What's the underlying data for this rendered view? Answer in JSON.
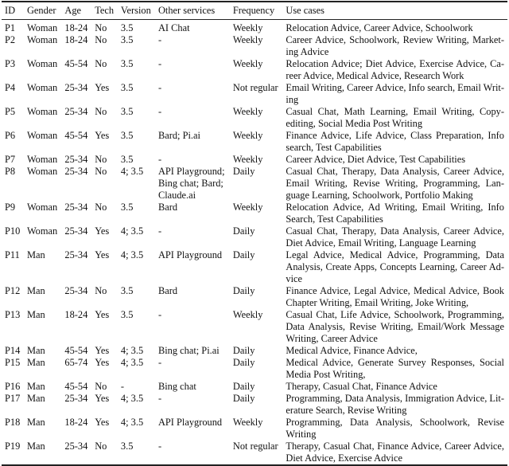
{
  "headers": [
    "ID",
    "Gender",
    "Age",
    "Tech",
    "Version",
    "Other services",
    "Frequency",
    "Use cases"
  ],
  "rows": [
    {
      "id": "P1",
      "gender": "Woman",
      "age": "18-24",
      "tech": "No",
      "version": "3.5",
      "other": [
        "AI Chat"
      ],
      "frequency": "Weekly",
      "use_cases": [
        "Relocation Advice, Career Advice, Schoolwork"
      ]
    },
    {
      "id": "P2",
      "gender": "Woman",
      "age": "18-24",
      "tech": "No",
      "version": "3.5",
      "other": [
        "-"
      ],
      "frequency": "Weekly",
      "use_cases": [
        "Career Advice, Schoolwork, Review Writing, Market-",
        "ing Advice"
      ]
    },
    {
      "id": "P3",
      "gender": "Woman",
      "age": "45-54",
      "tech": "No",
      "version": "3.5",
      "other": [
        "-"
      ],
      "frequency": "Weekly",
      "use_cases": [
        "Relocation Advice; Diet Advice, Exercise Advice, Ca-",
        "reer Advice, Medical Advice, Research Work"
      ]
    },
    {
      "id": "P4",
      "gender": "Woman",
      "age": "25-34",
      "tech": "Yes",
      "version": "3.5",
      "other": [
        "-"
      ],
      "frequency": "Not regular",
      "use_cases": [
        "Email Writing, Career Advice, Info search, Email Writ-",
        "ing"
      ]
    },
    {
      "id": "P5",
      "gender": "Woman",
      "age": "25-34",
      "tech": "No",
      "version": "3.5",
      "other": [
        "-"
      ],
      "frequency": "Weekly",
      "use_cases": [
        "Casual Chat, Math Learning, Email Writing, Copy-",
        "editing, Social Media Post Writing"
      ]
    },
    {
      "id": "P6",
      "gender": "Woman",
      "age": "45-54",
      "tech": "Yes",
      "version": "3.5",
      "other": [
        "Bard; Pi.ai"
      ],
      "frequency": "Weekly",
      "use_cases": [
        "Finance Advice, Life Advice, Class Preparation, Info",
        "search, Test Capabilities"
      ]
    },
    {
      "id": "P7",
      "gender": "Woman",
      "age": "25-34",
      "tech": "No",
      "version": "3.5",
      "other": [
        "-"
      ],
      "frequency": "Weekly",
      "use_cases": [
        "Career Advice, Diet Advice, Test Capabilities"
      ]
    },
    {
      "id": "P8",
      "gender": "Woman",
      "age": "25-34",
      "tech": "No",
      "version": "4; 3.5",
      "other": [
        "API Playground;",
        "Bing chat; Bard;",
        "Claude.ai"
      ],
      "frequency": "Daily",
      "use_cases": [
        "Casual Chat, Therapy, Data Analysis, Career Advice,",
        "Email Writing, Revise Writing, Programming, Lan-",
        "guage Learning, Schoolwork, Portfolio Making"
      ]
    },
    {
      "id": "P9",
      "gender": "Woman",
      "age": "25-34",
      "tech": "No",
      "version": "3.5",
      "other": [
        "Bard"
      ],
      "frequency": "Weekly",
      "use_cases": [
        "Relocation Advice, Ad Writing, Email Writing, Info",
        "Search, Test Capabilities"
      ]
    },
    {
      "id": "P10",
      "gender": "Woman",
      "age": "25-34",
      "tech": "Yes",
      "version": "4; 3.5",
      "other": [
        "-"
      ],
      "frequency": "Daily",
      "use_cases": [
        "Casual Chat, Therapy, Data Analysis, Career Advice,",
        "Diet Advice, Email Writing, Language Learning"
      ]
    },
    {
      "id": "P11",
      "gender": "Man",
      "age": "25-34",
      "tech": "Yes",
      "version": "4; 3.5",
      "other": [
        "API Playground"
      ],
      "frequency": "Daily",
      "use_cases": [
        "Legal Advice, Medical Advice, Programming, Data",
        "Analysis, Create Apps, Concepts Learning, Career Ad-",
        "vice"
      ]
    },
    {
      "id": "P12",
      "gender": "Man",
      "age": "25-34",
      "tech": "No",
      "version": "3.5",
      "other": [
        "Bard"
      ],
      "frequency": "Daily",
      "use_cases": [
        "Finance Advice, Legal Advice, Medical Advice, Book",
        "Chapter Writing, Email Writing, Joke Writing,"
      ]
    },
    {
      "id": "P13",
      "gender": "Man",
      "age": "18-24",
      "tech": "Yes",
      "version": "3.5",
      "other": [
        "-"
      ],
      "frequency": "Weekly",
      "use_cases": [
        "Casual Chat, Life Advice, Schoolwork, Programming,",
        "Data Analysis, Revise Writing, Email/Work Message",
        "Writing, Career Advice"
      ]
    },
    {
      "id": "P14",
      "gender": "Man",
      "age": "45-54",
      "tech": "Yes",
      "version": "4; 3.5",
      "other": [
        "Bing chat; Pi.ai"
      ],
      "frequency": "Daily",
      "use_cases": [
        "Medical Advice, Finance Advice,"
      ]
    },
    {
      "id": "P15",
      "gender": "Man",
      "age": "65-74",
      "tech": "Yes",
      "version": "4; 3.5",
      "other": [
        "-"
      ],
      "frequency": "Daily",
      "use_cases": [
        "Medical Advice, Generate Survey Responses, Social",
        "Media Post Writing,"
      ]
    },
    {
      "id": "P16",
      "gender": "Man",
      "age": "45-54",
      "tech": "No",
      "version": "-",
      "other": [
        "Bing chat"
      ],
      "frequency": "Daily",
      "use_cases": [
        "Therapy, Casual Chat, Finance Advice"
      ]
    },
    {
      "id": "P17",
      "gender": "Man",
      "age": "25-34",
      "tech": "Yes",
      "version": "4; 3.5",
      "other": [
        "-"
      ],
      "frequency": "Daily",
      "use_cases": [
        "Programming, Data Analysis, Immigration Advice, Lit-",
        "erature Search, Revise Writing"
      ]
    },
    {
      "id": "P18",
      "gender": "Man",
      "age": "18-24",
      "tech": "Yes",
      "version": "4; 3.5",
      "other": [
        "API Playground"
      ],
      "frequency": "Weekly",
      "use_cases": [
        "Programming, Data Analysis, Schoolwork, Revise",
        "Writing"
      ]
    },
    {
      "id": "P19",
      "gender": "Man",
      "age": "25-34",
      "tech": "No",
      "version": "3.5",
      "other": [
        "-"
      ],
      "frequency": "Not regular",
      "use_cases": [
        "Therapy, Casual Chat, Finance Advice, Career Advice,",
        "Diet Advice, Exercise Advice"
      ]
    }
  ]
}
